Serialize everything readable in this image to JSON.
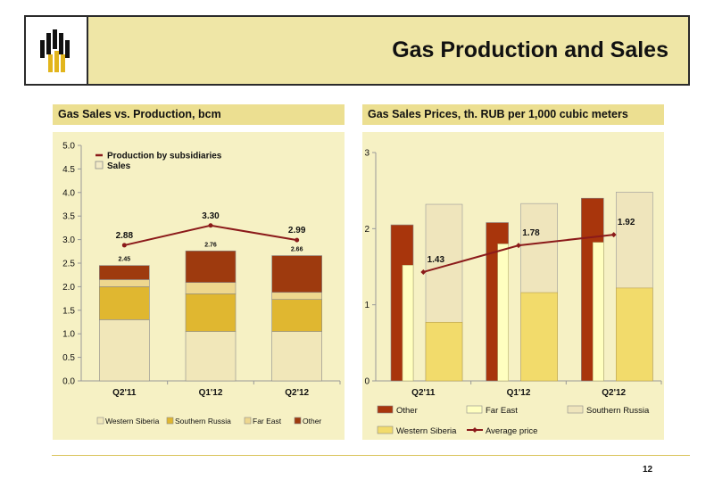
{
  "header": {
    "title": "Gas Production and Sales"
  },
  "page_number": "12",
  "colors": {
    "western_siberia": "#f1e7b9",
    "southern_russia": "#e0b730",
    "far_east": "#eed78e",
    "other": "#9e3a0e",
    "line": "#8b1a1a",
    "right_other": "#a8350c",
    "right_far_east": "#ffffc0",
    "right_southern": "#efe5bc",
    "right_western": "#f2db6b"
  },
  "left_chart": {
    "panel_title": "Gas Sales vs. Production, bcm",
    "chart_data": {
      "type": "bar",
      "stacked": true,
      "categories": [
        "Q2'11",
        "Q1'12",
        "Q2'12"
      ],
      "series": [
        {
          "name": "Western Siberia",
          "values": [
            1.3,
            1.05,
            1.05
          ]
        },
        {
          "name": "Southern Russia",
          "values": [
            0.7,
            0.8,
            0.68
          ]
        },
        {
          "name": "Far East",
          "values": [
            0.15,
            0.24,
            0.15
          ]
        },
        {
          "name": "Other",
          "values": [
            0.3,
            0.67,
            0.78
          ]
        }
      ],
      "totals": [
        "2.45",
        "2.76",
        "2.66"
      ],
      "line": {
        "name": "Production by subsidiaries",
        "values": [
          2.88,
          3.3,
          2.99
        ],
        "labels": [
          "2.88",
          "3.30",
          "2.99"
        ]
      },
      "bar_legend_name": "Sales",
      "ylim": [
        0,
        5
      ],
      "yticks": [
        "0.0",
        "0.5",
        "1.0",
        "1.5",
        "2.0",
        "2.5",
        "3.0",
        "3.5",
        "4.0",
        "4.5",
        "5.0"
      ],
      "legend_position": "bottom",
      "grid": false
    }
  },
  "right_chart": {
    "panel_title": "Gas Sales Prices, th. RUB per 1,000 cubic meters",
    "chart_data": {
      "type": "bar",
      "categories": [
        "Q2'11",
        "Q1'12",
        "Q2'12"
      ],
      "series": [
        {
          "name": "Other",
          "values": [
            2.05,
            2.08,
            2.4
          ]
        },
        {
          "name": "Far East",
          "values": [
            1.52,
            1.8,
            1.82
          ]
        },
        {
          "name": "Southern Russia",
          "values": [
            2.32,
            2.33,
            2.48
          ]
        },
        {
          "name": "Western Siberia",
          "values": [
            0.77,
            1.16,
            1.22
          ]
        }
      ],
      "line": {
        "name": "Average price",
        "values": [
          1.43,
          1.78,
          1.92
        ],
        "labels": [
          "1.43",
          "1.78",
          "1.92"
        ]
      },
      "ylim": [
        0,
        3
      ],
      "yticks": [
        "0",
        "1",
        "2",
        "3"
      ],
      "legend_position": "bottom",
      "grid": false
    }
  }
}
